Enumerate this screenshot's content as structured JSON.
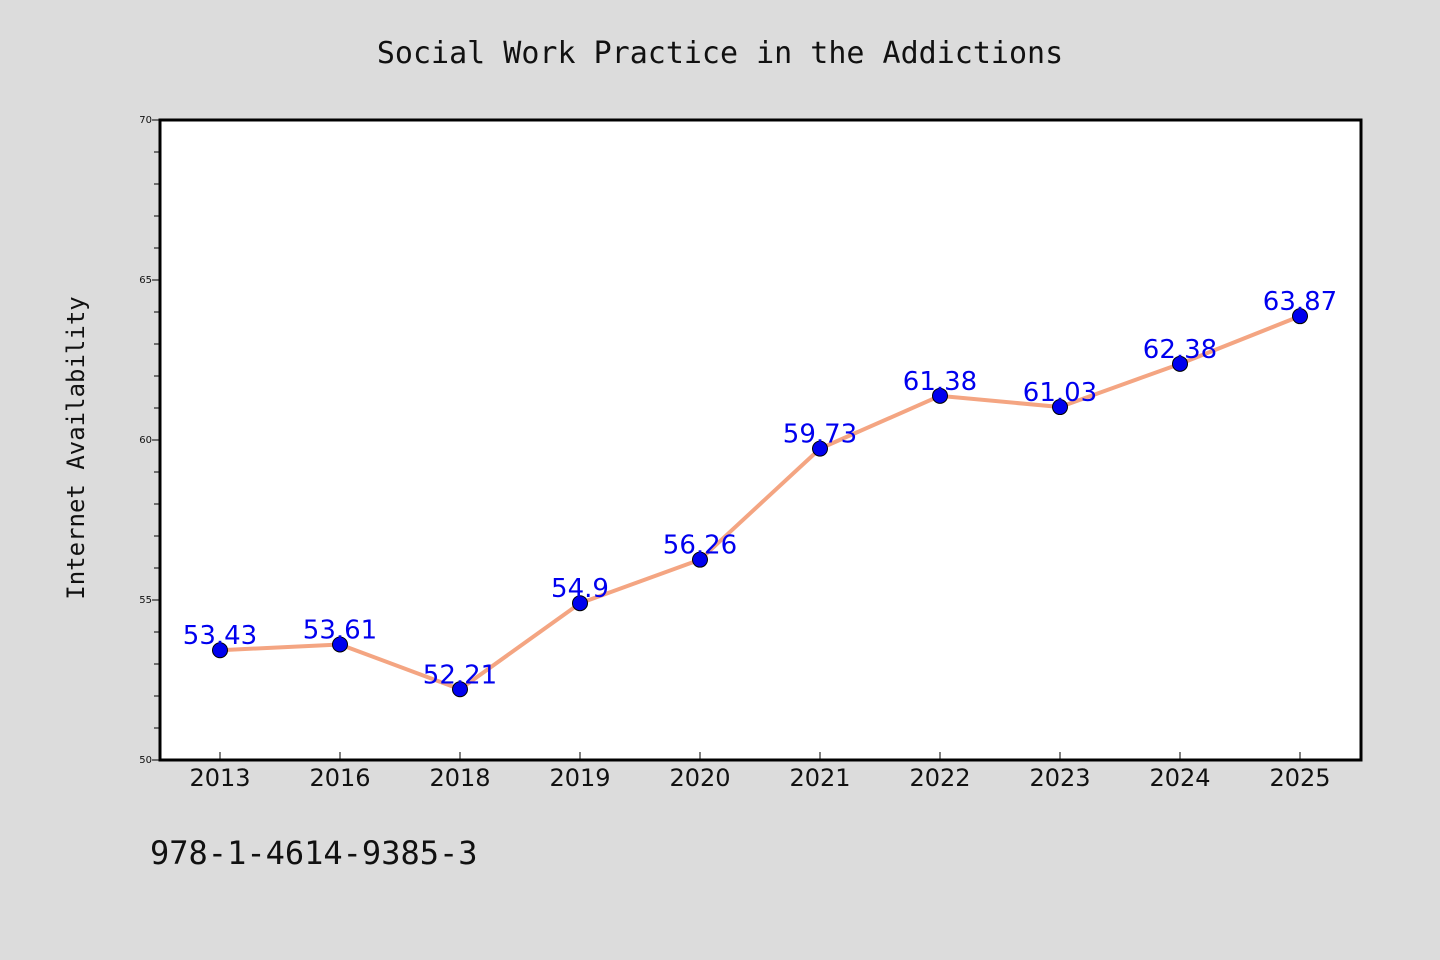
{
  "chart_data": {
    "type": "line",
    "title": "Social Work Practice in the Addictions",
    "xlabel": "",
    "ylabel": "Internet Availability",
    "categories": [
      "2013",
      "2016",
      "2018",
      "2019",
      "2020",
      "2021",
      "2022",
      "2023",
      "2024",
      "2025"
    ],
    "values": [
      53.43,
      53.61,
      52.21,
      54.9,
      56.26,
      59.73,
      61.38,
      61.03,
      62.38,
      63.87
    ],
    "data_labels": [
      "53.43",
      "53.61",
      "52.21",
      "54.9",
      "56.26",
      "59.73",
      "61.38",
      "61.03",
      "62.38",
      "63.87"
    ],
    "ylim": [
      50,
      70
    ],
    "y_ticks": [
      50,
      55,
      60,
      65,
      70
    ],
    "y_tick_labels": [
      "50",
      "55",
      "60",
      "65",
      "70"
    ],
    "grid": false,
    "legend": "none",
    "colors": {
      "line": "#f4a582",
      "marker": "#0000ee",
      "data_label": "#0000ee",
      "background": "#dcdcdc",
      "plot_background": "#ffffff"
    }
  },
  "footer": {
    "isbn": "978-1-4614-9385-3"
  }
}
